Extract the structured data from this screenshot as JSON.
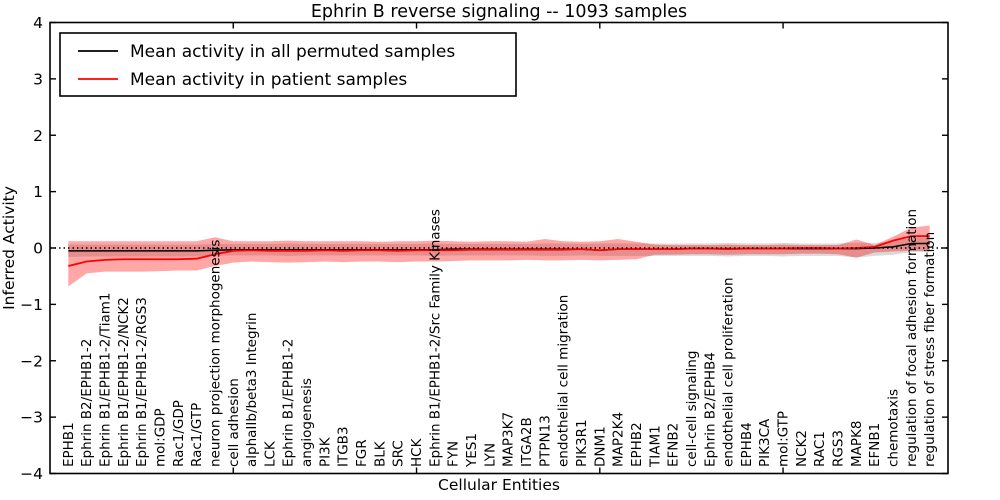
{
  "figure": {
    "title": "Ephrin B reverse signaling -- 1093 samples",
    "xlabel": "Cellular Entities",
    "ylabel": "Inferred Activity"
  },
  "legend": {
    "items": [
      {
        "label": "Mean activity in all permuted samples",
        "color": "#000000"
      },
      {
        "label": "Mean activity in patient samples",
        "color": "#ff0000"
      }
    ]
  },
  "chart_data": {
    "type": "line",
    "title": "Ephrin B reverse signaling -- 1093 samples",
    "xlabel": "Cellular Entities",
    "ylabel": "Inferred Activity",
    "ylim": [
      -4,
      4
    ],
    "yticks": [
      4,
      3,
      2,
      1,
      0,
      -1,
      -2,
      -3,
      -4
    ],
    "yticklabels": [
      "4",
      "3",
      "2",
      "1",
      "0",
      "−1",
      "−2",
      "−3",
      "−4"
    ],
    "xtick_axis_positions": [
      10,
      20,
      30,
      40
    ],
    "zero_line": true,
    "grid": false,
    "legend_position": "upper left",
    "categories": [
      "EPHB1",
      "Ephrin B2/EPHB1-2",
      "Ephrin B1/EPHB1-2/Tiam1",
      "Ephrin B1/EPHB1-2/NCK2",
      "Ephrin B1/EPHB1-2/RGS3",
      "mol:GDP",
      "Rac1/GDP",
      "Rac1/GTP",
      "neuron projection morphogenesis",
      "cell adhesion",
      "alphaIIb/beta3 Integrin",
      "LCK",
      "Ephrin B1/EPHB1-2",
      "angiogenesis",
      "PI3K",
      "ITGB3",
      "FGR",
      "BLK",
      "SRC",
      "HCK",
      "Ephrin B1/EPHB1-2/Src Family Kinases",
      "FYN",
      "YES1",
      "LYN",
      "MAP3K7",
      "ITGA2B",
      "PTPN13",
      "endothelial cell migration",
      "PIK3R1",
      "DNM1",
      "MAP2K4",
      "EPHB2",
      "TIAM1",
      "EFNB2",
      "cell-cell signaling",
      "Ephrin B2/EPHB4",
      "endothelial cell proliferation",
      "EPHB4",
      "PIK3CA",
      "mol:GTP",
      "NCK2",
      "RAC1",
      "RGS3",
      "MAPK8",
      "EFNB1",
      "chemotaxis",
      "regulation of focal adhesion formation",
      "regulation of stress fiber formation"
    ],
    "series": [
      {
        "name": "Mean activity in all permuted samples",
        "color": "#000000",
        "line_width": 1.5,
        "band_color": "rgba(120,120,120,0.28)",
        "values": [
          -0.05,
          -0.05,
          -0.05,
          -0.05,
          -0.05,
          -0.05,
          -0.05,
          -0.05,
          -0.04,
          -0.03,
          -0.03,
          -0.03,
          -0.03,
          -0.03,
          -0.03,
          -0.03,
          -0.03,
          -0.03,
          -0.03,
          -0.03,
          -0.03,
          -0.02,
          -0.02,
          -0.02,
          -0.02,
          -0.02,
          -0.02,
          -0.02,
          -0.02,
          -0.04,
          -0.02,
          -0.02,
          -0.02,
          -0.02,
          -0.01,
          -0.01,
          -0.01,
          -0.01,
          -0.01,
          -0.01,
          -0.01,
          -0.01,
          -0.01,
          -0.01,
          0,
          0.02,
          0.08,
          0.08
        ],
        "band_upper": [
          0.06,
          0.06,
          0.06,
          0.06,
          0.06,
          0.06,
          0.06,
          0.06,
          0.07,
          0.07,
          0.07,
          0.07,
          0.08,
          0.07,
          0.07,
          0.07,
          0.07,
          0.07,
          0.07,
          0.07,
          0.08,
          0.07,
          0.07,
          0.07,
          0.07,
          0.07,
          0.08,
          0.08,
          0.07,
          0.08,
          0.08,
          0.08,
          0.08,
          0.08,
          0.08,
          0.08,
          0.09,
          0.08,
          0.08,
          0.09,
          0.08,
          0.08,
          0.08,
          0.09,
          0.09,
          0.12,
          0.18,
          0.18
        ],
        "band_lower": [
          -0.16,
          -0.15,
          -0.15,
          -0.15,
          -0.15,
          -0.15,
          -0.15,
          -0.15,
          -0.14,
          -0.13,
          -0.13,
          -0.13,
          -0.14,
          -0.13,
          -0.13,
          -0.13,
          -0.13,
          -0.13,
          -0.13,
          -0.13,
          -0.14,
          -0.13,
          -0.13,
          -0.13,
          -0.13,
          -0.13,
          -0.14,
          -0.14,
          -0.13,
          -0.14,
          -0.14,
          -0.14,
          -0.14,
          -0.14,
          -0.14,
          -0.14,
          -0.15,
          -0.14,
          -0.14,
          -0.15,
          -0.14,
          -0.14,
          -0.14,
          -0.17,
          -0.14,
          -0.12,
          -0.07,
          -0.07
        ]
      },
      {
        "name": "Mean activity in patient samples",
        "color": "#ff0000",
        "line_width": 1.8,
        "band_color": "rgba(255,0,0,0.35)",
        "values": [
          -0.32,
          -0.24,
          -0.21,
          -0.2,
          -0.2,
          -0.2,
          -0.2,
          -0.19,
          -0.11,
          -0.05,
          -0.04,
          -0.05,
          -0.05,
          -0.05,
          -0.04,
          -0.05,
          -0.04,
          -0.04,
          -0.05,
          -0.04,
          -0.04,
          -0.04,
          -0.03,
          -0.03,
          -0.03,
          -0.03,
          -0.03,
          -0.03,
          -0.02,
          -0.04,
          -0.02,
          -0.02,
          -0.02,
          -0.02,
          -0.01,
          -0.01,
          -0.02,
          -0.01,
          -0.01,
          -0.01,
          0,
          0,
          -0.01,
          0,
          0.02,
          0.13,
          0.21,
          0.21
        ],
        "band_upper": [
          0.12,
          0.12,
          0.12,
          0.12,
          0.12,
          0.12,
          0.12,
          0.12,
          0.19,
          0.12,
          0.12,
          0.12,
          0.13,
          0.12,
          0.12,
          0.12,
          0.12,
          0.11,
          0.12,
          0.12,
          0.13,
          0.12,
          0.11,
          0.12,
          0.12,
          0.11,
          0.16,
          0.12,
          0.11,
          0.12,
          0.16,
          0.11,
          0.06,
          0.05,
          0.05,
          0.05,
          0.06,
          0.05,
          0.05,
          0.06,
          0.05,
          0.05,
          0.05,
          0.15,
          0.05,
          0.2,
          0.36,
          0.4
        ],
        "band_lower": [
          -0.68,
          -0.45,
          -0.42,
          -0.42,
          -0.42,
          -0.41,
          -0.4,
          -0.4,
          -0.32,
          -0.26,
          -0.24,
          -0.25,
          -0.26,
          -0.25,
          -0.24,
          -0.25,
          -0.24,
          -0.24,
          -0.25,
          -0.24,
          -0.24,
          -0.23,
          -0.22,
          -0.22,
          -0.22,
          -0.21,
          -0.22,
          -0.22,
          -0.21,
          -0.22,
          -0.21,
          -0.2,
          -0.12,
          -0.12,
          -0.11,
          -0.11,
          -0.12,
          -0.11,
          -0.11,
          -0.11,
          -0.1,
          -0.1,
          -0.11,
          -0.17,
          -0.08,
          -0.06,
          -0.05,
          -0.05
        ]
      }
    ]
  }
}
